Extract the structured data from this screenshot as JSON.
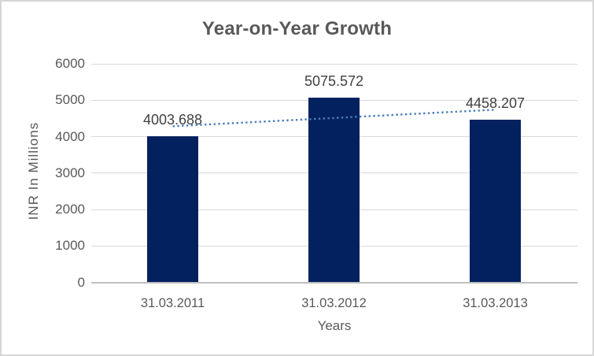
{
  "chart_data": {
    "type": "bar",
    "title": "Year-on-Year Growth",
    "xlabel": "Years",
    "ylabel": "INR In Millions",
    "categories": [
      "31.03.2011",
      "31.03.2012",
      "31.03.2013"
    ],
    "values": [
      4003.688,
      5075.572,
      4458.207
    ],
    "data_labels": [
      "4003.688",
      "5075.572",
      "4458.207"
    ],
    "ylim": [
      0,
      6000
    ],
    "yticks": [
      0,
      1000,
      2000,
      3000,
      4000,
      5000,
      6000
    ],
    "grid": true,
    "legend": "none",
    "series_name": "INR In Millions",
    "trendline": {
      "type": "linear",
      "style": "dotted",
      "trend_values": [
        4285.2,
        4739.8
      ]
    }
  },
  "colors": {
    "bar": "#02215E",
    "trendline": "#4A7EBB",
    "gridline": "#D9D9D9",
    "axis_line": "#BFBFBF",
    "title_text": "#595959",
    "tick_text": "#595959",
    "data_label_text": "#404040",
    "frame_border": "#D6D6D6",
    "background": "#FFFFFF"
  }
}
